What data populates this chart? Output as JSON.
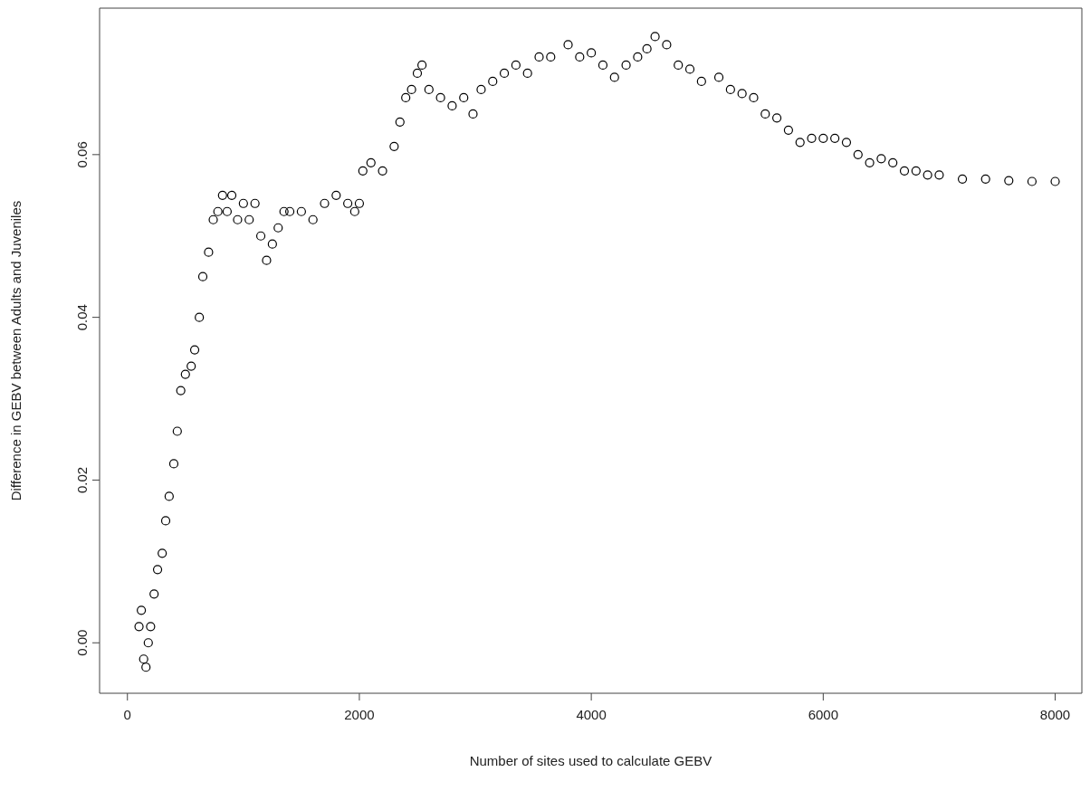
{
  "chart_data": {
    "type": "scatter",
    "xlabel": "Number of sites used to calculate GEBV",
    "ylabel": "Difference in GEBV between Adults and Juveniles",
    "marker": "circle",
    "color": "#000000",
    "grid": false,
    "xlim": [
      -240,
      8230
    ],
    "ylim": [
      -0.0062,
      0.078
    ],
    "xticks": [
      0,
      2000,
      4000,
      6000,
      8000
    ],
    "yticks": [
      {
        "value": 0,
        "label": "0.00"
      },
      {
        "value": 0.02,
        "label": "0.02"
      },
      {
        "value": 0.04,
        "label": "0.04"
      },
      {
        "value": 0.06,
        "label": "0.06"
      }
    ],
    "x": [
      100,
      120,
      140,
      160,
      180,
      200,
      230,
      260,
      300,
      330,
      360,
      400,
      430,
      460,
      500,
      550,
      580,
      620,
      650,
      700,
      740,
      780,
      820,
      860,
      900,
      950,
      1000,
      1050,
      1100,
      1150,
      1200,
      1250,
      1300,
      1350,
      1400,
      1500,
      1600,
      1700,
      1800,
      1900,
      1960,
      2000,
      2030,
      2100,
      2200,
      2300,
      2350,
      2400,
      2450,
      2500,
      2540,
      2600,
      2700,
      2800,
      2900,
      2980,
      3050,
      3150,
      3250,
      3350,
      3450,
      3550,
      3650,
      3800,
      3900,
      4000,
      4100,
      4200,
      4300,
      4400,
      4480,
      4550,
      4650,
      4750,
      4850,
      4950,
      5100,
      5200,
      5300,
      5400,
      5500,
      5600,
      5700,
      5800,
      5900,
      6000,
      6100,
      6200,
      6300,
      6400,
      6500,
      6600,
      6700,
      6800,
      6900,
      7000,
      7200,
      7400,
      7600,
      7800,
      8000
    ],
    "values": [
      0.002,
      0.004,
      -0.002,
      -0.003,
      0.0,
      0.002,
      0.006,
      0.009,
      0.011,
      0.015,
      0.018,
      0.022,
      0.026,
      0.031,
      0.033,
      0.034,
      0.036,
      0.04,
      0.045,
      0.048,
      0.052,
      0.053,
      0.055,
      0.053,
      0.055,
      0.052,
      0.054,
      0.052,
      0.054,
      0.05,
      0.047,
      0.049,
      0.051,
      0.053,
      0.053,
      0.053,
      0.052,
      0.054,
      0.055,
      0.054,
      0.053,
      0.054,
      0.058,
      0.059,
      0.058,
      0.061,
      0.064,
      0.067,
      0.068,
      0.07,
      0.071,
      0.068,
      0.067,
      0.066,
      0.067,
      0.065,
      0.068,
      0.069,
      0.07,
      0.071,
      0.07,
      0.072,
      0.072,
      0.0735,
      0.072,
      0.0725,
      0.071,
      0.0695,
      0.071,
      0.072,
      0.073,
      0.0745,
      0.0735,
      0.071,
      0.0705,
      0.069,
      0.0695,
      0.068,
      0.0675,
      0.067,
      0.065,
      0.0645,
      0.063,
      0.0615,
      0.062,
      0.062,
      0.062,
      0.0615,
      0.06,
      0.059,
      0.0595,
      0.059,
      0.058,
      0.058,
      0.0575,
      0.0575,
      0.057,
      0.057,
      0.0568,
      0.0567,
      0.0567
    ]
  }
}
